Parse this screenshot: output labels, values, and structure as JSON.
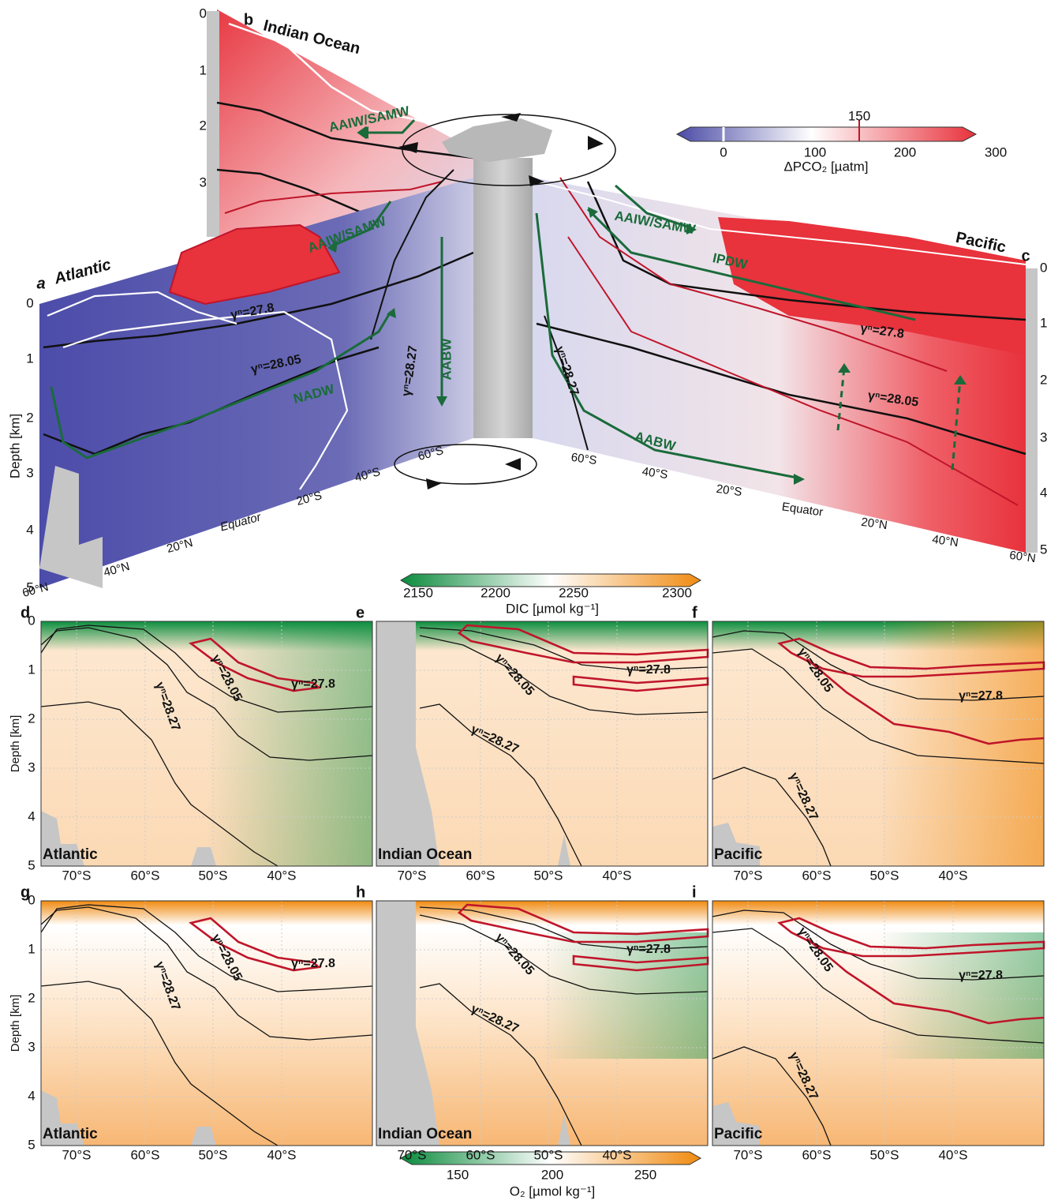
{
  "top": {
    "panel_labels": [
      "a",
      "b",
      "c"
    ],
    "basins": [
      "Atlantic",
      "Indian Ocean",
      "Pacific"
    ],
    "water_masses": [
      "AAIW/SAMW",
      "AAIW/SAMW",
      "AAIW/SAMW",
      "IPDW",
      "NADW",
      "AABW",
      "AABW"
    ],
    "isopycnals": [
      "γⁿ=27.8",
      "γⁿ=28.05",
      "γⁿ=28.27",
      "γⁿ=28.27",
      "γⁿ=27.8",
      "γⁿ=28.05"
    ],
    "depth_label": "Depth [km]",
    "depth_ticks_left": [
      "0",
      "1",
      "2",
      "3",
      "4",
      "5"
    ],
    "depth_ticks_back": [
      "0",
      "1",
      "2",
      "3"
    ],
    "depth_ticks_right": [
      "0",
      "1",
      "2",
      "3",
      "4",
      "5"
    ],
    "lat_atlantic": [
      "60°N",
      "40°N",
      "20°N",
      "Equator",
      "20°S",
      "40°S",
      "60°S"
    ],
    "lat_pacific": [
      "60°S",
      "40°S",
      "20°S",
      "Equator",
      "20°N",
      "40°N",
      "60°N"
    ]
  },
  "colorbar_pco2": {
    "ticks": [
      "0",
      "100",
      "150",
      "200",
      "300"
    ],
    "label": "ΔPCO₂ [µatm]"
  },
  "colorbar_dic": {
    "ticks": [
      "2150",
      "2200",
      "2250",
      "2300"
    ],
    "label": "DIC [µmol kg⁻¹]"
  },
  "colorbar_o2": {
    "ticks": [
      "150",
      "200",
      "250"
    ],
    "label": "O₂ [µmol kg⁻¹]"
  },
  "section_axes": {
    "depth_label": "Depth [km]",
    "depth_ticks": [
      "0",
      "1",
      "2",
      "3",
      "4",
      "5"
    ],
    "lat_ticks": [
      "70°S",
      "60°S",
      "50°S",
      "40°S"
    ]
  },
  "panels": [
    {
      "letter": "d",
      "basin": "Atlantic",
      "isopycnals": [
        "γⁿ=27.8",
        "γⁿ=28.05",
        "γⁿ=28.27"
      ]
    },
    {
      "letter": "e",
      "basin": "Indian Ocean",
      "isopycnals": [
        "γⁿ=27.8",
        "γⁿ=28.05",
        "γⁿ=28.27"
      ]
    },
    {
      "letter": "f",
      "basin": "Pacific",
      "isopycnals": [
        "γⁿ=27.8",
        "γⁿ=28.05",
        "γⁿ=28.27"
      ]
    },
    {
      "letter": "g",
      "basin": "Atlantic",
      "isopycnals": [
        "γⁿ=27.8",
        "γⁿ=28.05",
        "γⁿ=28.27"
      ]
    },
    {
      "letter": "h",
      "basin": "Indian Ocean",
      "isopycnals": [
        "γⁿ=27.8",
        "γⁿ=28.05",
        "γⁿ=28.27"
      ]
    },
    {
      "letter": "i",
      "basin": "Pacific",
      "isopycnals": [
        "γⁿ=27.8",
        "γⁿ=28.05",
        "γⁿ=28.27"
      ]
    }
  ]
}
